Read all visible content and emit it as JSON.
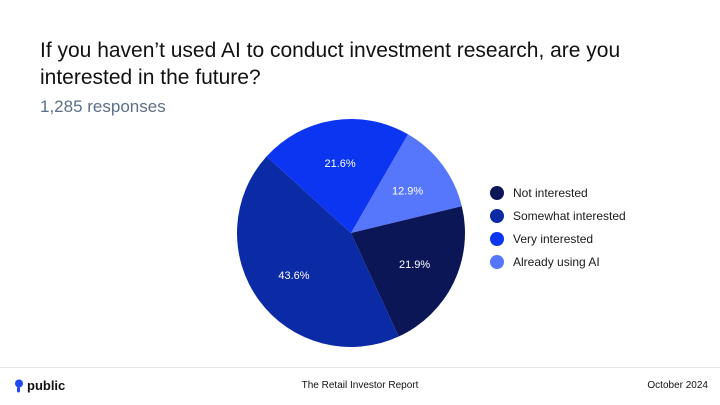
{
  "title": "If you haven’t used AI to conduct investment research, are you interested in the future?",
  "subtitle": "1,285 responses",
  "chart_data": {
    "type": "pie",
    "title": "If you haven’t used AI to conduct investment research, are you interested in the future?",
    "subtitle": "1,285 responses",
    "slices": [
      {
        "label": "Not interested",
        "value": 21.9,
        "display": "21.9%",
        "color": "#0b1657"
      },
      {
        "label": "Somewhat interested",
        "value": 43.6,
        "display": "43.6%",
        "color": "#0a2aa6"
      },
      {
        "label": "Very interested",
        "value": 21.6,
        "display": "21.6%",
        "color": "#0b35f0"
      },
      {
        "label": "Already using AI",
        "value": 12.9,
        "display": "12.9%",
        "color": "#5677fb"
      }
    ],
    "legend_position": "right"
  },
  "footer": {
    "brand": "public",
    "report": "The Retail Investor Report",
    "date": "October 2024"
  }
}
